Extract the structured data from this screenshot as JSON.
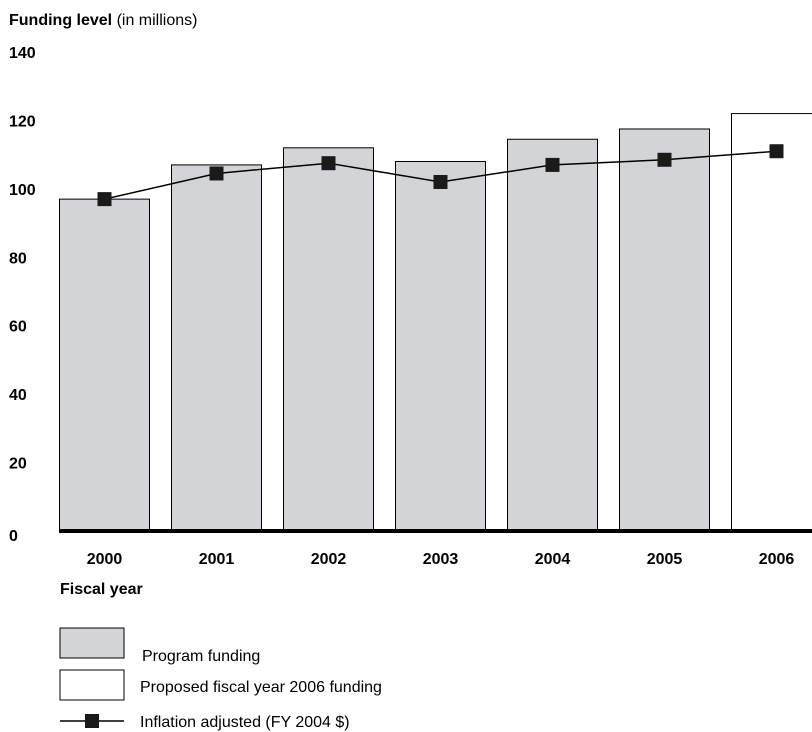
{
  "chart_data": {
    "type": "bar",
    "ylabel_bold": "Funding level",
    "ylabel_rest": " (in millions)",
    "xlabel": "Fiscal year",
    "categories": [
      "2000",
      "2001",
      "2002",
      "2003",
      "2004",
      "2005",
      "2006"
    ],
    "ylim": [
      0,
      140
    ],
    "yticks": [
      0,
      20,
      40,
      60,
      80,
      100,
      120,
      140
    ],
    "series": [
      {
        "name": "Program funding",
        "kind": "bar",
        "values": [
          97,
          107,
          112,
          108,
          114.5,
          117.5,
          null
        ],
        "color": "#d3d4d7"
      },
      {
        "name": "Proposed fiscal year 2006 funding",
        "kind": "bar",
        "values": [
          null,
          null,
          null,
          null,
          null,
          null,
          122
        ],
        "color": "#ffffff"
      },
      {
        "name": "Inflation adjusted (FY 2004 $)",
        "kind": "line",
        "values": [
          97,
          104.5,
          107.5,
          102,
          107,
          108.5,
          111
        ],
        "color": "#000000"
      }
    ],
    "legend_placement": "bottom-left",
    "grid": false
  }
}
